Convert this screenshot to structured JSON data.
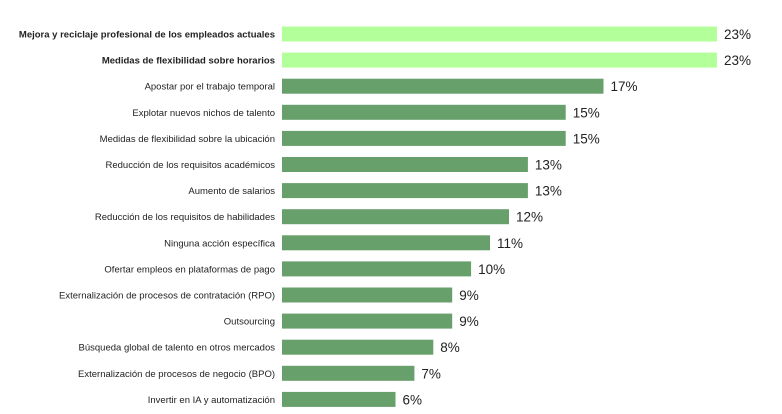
{
  "chart_data": {
    "type": "bar",
    "orientation": "horizontal",
    "categories": [
      "Mejora y reciclaje profesional de los empleados actuales",
      "Medidas de flexibilidad sobre horarios",
      "Apostar por el trabajo temporal",
      "Explotar nuevos nichos de talento",
      "Medidas de flexibilidad sobre la ubicación",
      "Reducción de los requisitos académicos",
      "Aumento de salarios",
      "Reducción de los requisitos de habilidades",
      "Ninguna acción específica",
      "Ofertar empleos en plataformas de pago",
      "Externalización de procesos de contratación (RPO)",
      "Outsourcing",
      "Búsqueda global de talento en otros mercados",
      "Externalización de procesos de negocio (BPO)",
      "Invertir en IA y automatización"
    ],
    "values": [
      23,
      23,
      17,
      15,
      15,
      13,
      13,
      12,
      11,
      10,
      9,
      9,
      8,
      7,
      6
    ],
    "value_labels": [
      "23%",
      "23%",
      "17%",
      "15%",
      "15%",
      "13%",
      "13%",
      "12%",
      "11%",
      "10%",
      "9%",
      "9%",
      "8%",
      "7%",
      "6%"
    ],
    "highlighted": [
      0,
      1
    ],
    "title": "",
    "xlabel": "",
    "ylabel": "",
    "xlim": [
      0,
      23
    ],
    "grid": false,
    "legend": "none"
  },
  "colors": {
    "highlight_bar": "#b3ff99",
    "bar": "#67a06a",
    "text": "#222222"
  }
}
